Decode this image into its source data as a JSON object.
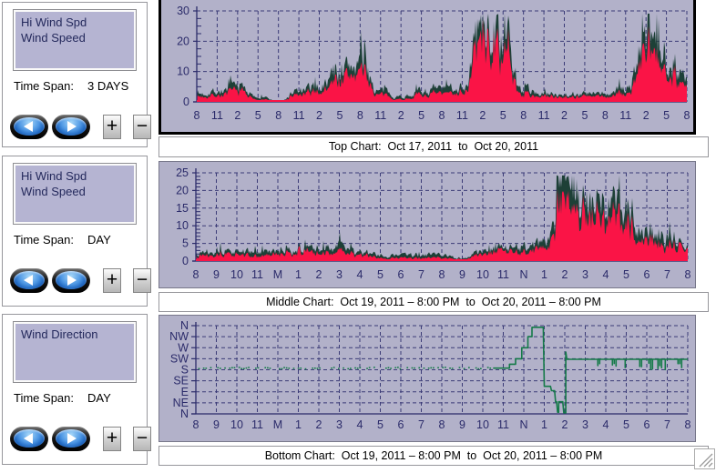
{
  "colors": {
    "chart_bg": "#b2b1c9",
    "grid": "#3b3b77",
    "axis": "#2b2b6a",
    "tick_text": "#2b2b6a",
    "hi_wind": "#1d4037",
    "wind": "#fa1446",
    "direction": "#147a48",
    "selection_border": "#000000"
  },
  "icons": {
    "plus": "+",
    "minus": "−",
    "left_arrow": "left-triangle",
    "right_arrow": "right-triangle"
  },
  "panels": [
    {
      "items": [
        "Hi Wind Spd",
        "Wind Speed"
      ],
      "time_span_label": "Time Span:",
      "time_span": "3 DAYS"
    },
    {
      "items": [
        "Hi Wind Spd",
        "Wind Speed"
      ],
      "time_span_label": "Time Span:",
      "time_span": "DAY"
    },
    {
      "items": [
        "Wind Direction"
      ],
      "time_span_label": "Time Span:",
      "time_span": "DAY"
    }
  ],
  "captions": {
    "top": "Top Chart:  Oct 17, 2011  to  Oct 20, 2011",
    "middle": "Middle Chart:  Oct 19, 2011 – 8:00 PM  to  Oct 20, 2011 – 8:00 PM",
    "bottom": "Bottom Chart:  Oct 19, 2011 – 8:00 PM  to  Oct 20, 2011 – 8:00 PM"
  },
  "chart_data": [
    {
      "type": "area",
      "title": "Top Chart: Oct 17, 2011 to Oct 20, 2011",
      "x_tick_labels": [
        "8",
        "11",
        "2",
        "5",
        "8",
        "11",
        "2",
        "5",
        "8",
        "11",
        "2",
        "5",
        "8",
        "11",
        "2",
        "5",
        "8",
        "11",
        "2",
        "5",
        "8",
        "11",
        "2",
        "5",
        "8"
      ],
      "x_interval_hours": 3,
      "ylim": [
        0,
        30
      ],
      "yticks": [
        0,
        10,
        20,
        30
      ],
      "y_minor_step": 2.5,
      "grid": "dashed",
      "series": [
        {
          "name": "Hi Wind Spd",
          "color": "#1d4037",
          "values": [
            3,
            4,
            6,
            2,
            0.4,
            4,
            6,
            12,
            15,
            4,
            2,
            4,
            5,
            6,
            28,
            24,
            5,
            3,
            3,
            3,
            3,
            5,
            23,
            18,
            9
          ]
        },
        {
          "name": "Wind Speed",
          "color": "#fa1446",
          "values": [
            2,
            2.5,
            4,
            1,
            0.2,
            2.5,
            4,
            8.5,
            11,
            2.5,
            1,
            2.5,
            3,
            4,
            22,
            18,
            3,
            2,
            2,
            2,
            2,
            3,
            17,
            13,
            6
          ]
        }
      ]
    },
    {
      "type": "area",
      "title": "Middle Chart: Oct 19, 2011 8:00 PM to Oct 20, 2011 8:00 PM",
      "x_tick_labels": [
        "8",
        "9",
        "10",
        "11",
        "M",
        "1",
        "2",
        "3",
        "4",
        "5",
        "6",
        "7",
        "8",
        "9",
        "10",
        "11",
        "N",
        "1",
        "2",
        "3",
        "4",
        "5",
        "6",
        "7",
        "8"
      ],
      "x_interval_hours": 1,
      "ylim": [
        0,
        25
      ],
      "yticks": [
        0,
        5,
        10,
        15,
        20,
        25
      ],
      "y_minor_step": 1,
      "grid": "dashed",
      "series": [
        {
          "name": "Hi Wind Spd",
          "color": "#1d4037",
          "values": [
            3,
            4,
            3,
            3,
            3,
            4,
            4,
            5,
            3,
            2,
            2,
            2,
            2,
            1,
            3,
            4,
            5,
            6,
            23,
            20,
            19,
            16,
            10,
            8,
            5
          ]
        },
        {
          "name": "Wind Speed",
          "color": "#fa1446",
          "values": [
            2,
            2.5,
            2,
            1.5,
            2,
            3,
            2.5,
            3,
            2,
            1,
            1,
            1,
            1,
            0.6,
            2,
            3,
            3,
            4,
            17,
            15,
            14,
            11,
            7,
            5,
            4
          ]
        }
      ]
    },
    {
      "type": "line",
      "title": "Bottom Chart: Oct 19, 2011 8:00 PM to Oct 20, 2011 8:00 PM",
      "x_tick_labels": [
        "8",
        "9",
        "10",
        "11",
        "M",
        "1",
        "2",
        "3",
        "4",
        "5",
        "6",
        "7",
        "8",
        "9",
        "10",
        "11",
        "N",
        "1",
        "2",
        "3",
        "4",
        "5",
        "6",
        "7",
        "8"
      ],
      "y_category_labels_top_to_bottom": [
        "N",
        "NW",
        "W",
        "SW",
        "S",
        "SE",
        "E",
        "NE",
        "N"
      ],
      "series": [
        {
          "name": "Wind Direction",
          "color": "#147a48"
        }
      ],
      "values_by_hour": [
        "S",
        "S",
        "S",
        "S",
        "S",
        "S",
        "S",
        "S",
        "S",
        "S",
        "S",
        "S",
        "S",
        "S",
        "S",
        "SW",
        "NNW",
        "E",
        "N-then-SW",
        "SW",
        "SW",
        "SW",
        "SW",
        "SW",
        "SW"
      ],
      "dotted_segment": {
        "from_hour": 0,
        "to_hour": 14.5,
        "level": 3.85,
        "note": "intermittent dotted trace just above S"
      },
      "solid_path_hour_level": [
        [
          14.5,
          3.85
        ],
        [
          15.3,
          3.85
        ],
        [
          15.3,
          3.5
        ],
        [
          15.6,
          3.5
        ],
        [
          15.6,
          3.0
        ],
        [
          15.9,
          3.0
        ],
        [
          15.9,
          2.0
        ],
        [
          16.2,
          2.0
        ],
        [
          16.2,
          1.0
        ],
        [
          16.4,
          1.0
        ],
        [
          16.4,
          0.15
        ],
        [
          16.95,
          0.15
        ],
        [
          17.0,
          5.5
        ],
        [
          17.3,
          5.5
        ],
        [
          17.35,
          5.9
        ],
        [
          17.5,
          5.9
        ],
        [
          17.55,
          6.9
        ],
        [
          17.6,
          6.9
        ],
        [
          17.65,
          7.85
        ],
        [
          17.7,
          7.85
        ],
        [
          17.7,
          6.9
        ],
        [
          17.9,
          6.9
        ],
        [
          17.95,
          7.9
        ],
        [
          18.05,
          7.9
        ],
        [
          18.05,
          2.4
        ],
        [
          18.1,
          3.05
        ]
      ],
      "plateau": {
        "from_hour": 18.1,
        "to_hour": 24,
        "level": 3.05,
        "jitter_down_to": 4.0,
        "note": "steady SW with brief dips toward S"
      },
      "level_scale": "0=N(top),1=NW,2=W,3=SW,4=S,5=SE,6=E,7=NE,8=N(bottom)"
    }
  ]
}
